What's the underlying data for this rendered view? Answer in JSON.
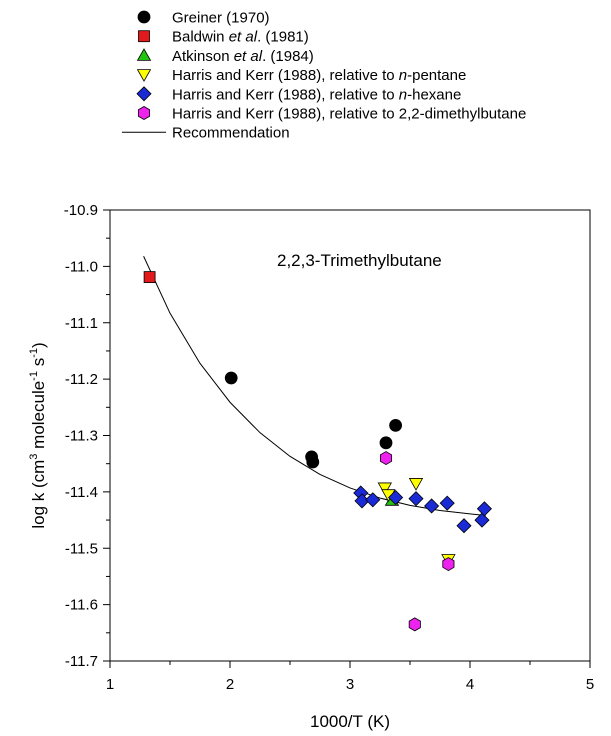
{
  "chart_data": {
    "type": "scatter",
    "annotation": "2,2,3-Trimethylbutane",
    "xlabel": "1000/T (K)",
    "ylabel": {
      "prefix": "log k (cm",
      "sup1": "3",
      "mid": " molecule",
      "sup2": "-1",
      "mid2": " s",
      "sup3": "-1",
      "suffix": ")"
    },
    "xlim": [
      1,
      5
    ],
    "ylim": [
      -11.7,
      -10.9
    ],
    "xticks": [
      "1",
      "2",
      "3",
      "4",
      "5"
    ],
    "yticks": [
      "-10.9",
      "-11.0",
      "-11.1",
      "-11.2",
      "-11.3",
      "-11.4",
      "-11.5",
      "-11.6",
      "-11.7"
    ],
    "grid": false,
    "legend_placement": "top",
    "legend": [
      {
        "label_parts": [
          {
            "t": "Greiner (1970)",
            "i": false
          }
        ],
        "marker": "circle",
        "color": "#000000"
      },
      {
        "label_parts": [
          {
            "t": "Baldwin ",
            "i": false
          },
          {
            "t": "et al",
            "i": true
          },
          {
            "t": ". (1981)",
            "i": false
          }
        ],
        "marker": "square",
        "color": "#e31a1c"
      },
      {
        "label_parts": [
          {
            "t": "Atkinson ",
            "i": false
          },
          {
            "t": "et al",
            "i": true
          },
          {
            "t": ". (1984)",
            "i": false
          }
        ],
        "marker": "triangle-up",
        "color": "#22c40f"
      },
      {
        "label_parts": [
          {
            "t": "Harris and Kerr (1988), relative to ",
            "i": false
          },
          {
            "t": "n",
            "i": true
          },
          {
            "t": "-pentane",
            "i": false
          }
        ],
        "marker": "triangle-down",
        "color": "#ffff00"
      },
      {
        "label_parts": [
          {
            "t": "Harris and Kerr (1988), relative to ",
            "i": false
          },
          {
            "t": "n",
            "i": true
          },
          {
            "t": "-hexane",
            "i": false
          }
        ],
        "marker": "diamond",
        "color": "#1a2bd6"
      },
      {
        "label_parts": [
          {
            "t": "Harris and Kerr (1988), relative to 2,2-dimethylbutane",
            "i": false
          }
        ],
        "marker": "hexagon",
        "color": "#ee22ee"
      },
      {
        "label_parts": [
          {
            "t": "Recommendation",
            "i": false
          }
        ],
        "marker": "line",
        "color": "#000000"
      }
    ],
    "series": [
      {
        "marker": "circle",
        "color": "#000000",
        "points": [
          [
            2.01,
            -11.198
          ],
          [
            2.68,
            -11.338
          ],
          [
            2.69,
            -11.347
          ],
          [
            3.3,
            -11.313
          ],
          [
            3.38,
            -11.282
          ]
        ]
      },
      {
        "marker": "square",
        "color": "#e31a1c",
        "points": [
          [
            1.33,
            -11.019
          ]
        ]
      },
      {
        "marker": "triangle-up",
        "color": "#22c40f",
        "points": [
          [
            3.35,
            -11.415
          ]
        ]
      },
      {
        "marker": "triangle-down",
        "color": "#ffff00",
        "points": [
          [
            3.29,
            -11.393
          ],
          [
            3.32,
            -11.405
          ],
          [
            3.55,
            -11.385
          ],
          [
            3.82,
            -11.52
          ]
        ]
      },
      {
        "marker": "diamond",
        "color": "#1a2bd6",
        "points": [
          [
            3.09,
            -11.402
          ],
          [
            3.1,
            -11.416
          ],
          [
            3.19,
            -11.414
          ],
          [
            3.38,
            -11.41
          ],
          [
            3.55,
            -11.412
          ],
          [
            3.68,
            -11.425
          ],
          [
            3.81,
            -11.42
          ],
          [
            3.95,
            -11.46
          ],
          [
            4.1,
            -11.45
          ],
          [
            4.12,
            -11.43
          ]
        ]
      },
      {
        "marker": "hexagon",
        "color": "#ee22ee",
        "points": [
          [
            3.3,
            -11.34
          ],
          [
            3.54,
            -11.635
          ],
          [
            3.82,
            -11.528
          ]
        ]
      }
    ],
    "recommendation": {
      "x": [
        1.28,
        1.5,
        1.75,
        2.0,
        2.25,
        2.5,
        2.75,
        3.0,
        3.25,
        3.5,
        3.75,
        4.0,
        4.13
      ],
      "y": [
        -10.982,
        -11.083,
        -11.172,
        -11.241,
        -11.295,
        -11.337,
        -11.369,
        -11.393,
        -11.411,
        -11.424,
        -11.433,
        -11.439,
        -11.442
      ]
    }
  }
}
